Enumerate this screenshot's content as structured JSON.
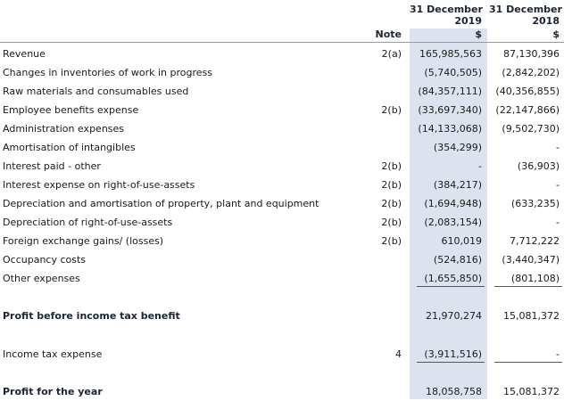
{
  "header": {
    "col2019_line1": "31 December",
    "col2019_line2": "2019",
    "col2019_unit": "$",
    "col2018_line1": "31 December",
    "col2018_line2": "2018",
    "col2018_unit": "$",
    "note_label": "Note"
  },
  "rows": [
    {
      "label": "Revenue",
      "note": "2(a)",
      "v2019": "165,985,563",
      "v2018": "87,130,396"
    },
    {
      "label": "Changes in inventories of work in progress",
      "note": "",
      "v2019": "(5,740,505)",
      "v2018": "(2,842,202)"
    },
    {
      "label": "Raw materials and consumables used",
      "note": "",
      "v2019": "(84,357,111)",
      "v2018": "(40,356,855)"
    },
    {
      "label": "Employee benefits expense",
      "note": "2(b)",
      "v2019": "(33,697,340)",
      "v2018": "(22,147,866)"
    },
    {
      "label": "Administration expenses",
      "note": "",
      "v2019": "(14,133,068)",
      "v2018": "(9,502,730)"
    },
    {
      "label": "Amortisation of intangibles",
      "note": "",
      "v2019": "(354,299)",
      "v2018": "-"
    },
    {
      "label": "Interest paid - other",
      "note": "2(b)",
      "v2019": "-",
      "v2018": "(36,903)"
    },
    {
      "label": "Interest expense on right-of-use-assets",
      "note": "2(b)",
      "v2019": "(384,217)",
      "v2018": "-"
    },
    {
      "label": "Depreciation and amortisation of property, plant and equipment",
      "note": "2(b)",
      "v2019": "(1,694,948)",
      "v2018": "(633,235)"
    },
    {
      "label": "Depreciation of right-of-use-assets",
      "note": "2(b)",
      "v2019": "(2,083,154)",
      "v2018": "-"
    },
    {
      "label": "Foreign exchange gains/ (losses)",
      "note": "2(b)",
      "v2019": "610,019",
      "v2018": "7,712,222"
    },
    {
      "label": "Occupancy costs",
      "note": "",
      "v2019": "(524,816)",
      "v2018": "(3,440,347)"
    },
    {
      "label": "Other expenses",
      "note": "",
      "v2019": "(1,655,850)",
      "v2018": "(801,108)"
    }
  ],
  "profit_before_tax": {
    "label": "Profit before income tax benefit",
    "v2019": "21,970,274",
    "v2018": "15,081,372"
  },
  "income_tax": {
    "label": "Income tax expense",
    "note": "4",
    "v2019": "(3,911,516)",
    "v2018": "-"
  },
  "profit_year": {
    "label": "Profit for the year",
    "v2019": "18,058,758",
    "v2018": "15,081,372"
  }
}
